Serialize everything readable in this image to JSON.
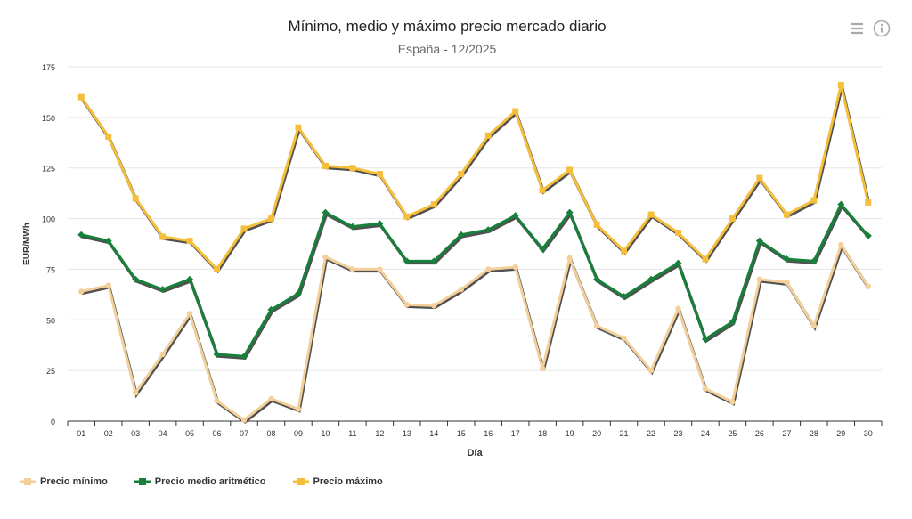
{
  "chart_data": {
    "type": "line",
    "title": "Mínimo, medio y máximo precio mercado diario",
    "subtitle": "España - 12/2025",
    "xlabel": "Día",
    "ylabel": "EUR/MWh",
    "ylim": [
      0,
      175
    ],
    "yticks": [
      0,
      25,
      50,
      75,
      100,
      125,
      150,
      175
    ],
    "grid": true,
    "legend_position": "bottom-left",
    "categories": [
      "01",
      "02",
      "03",
      "04",
      "05",
      "06",
      "07",
      "08",
      "09",
      "10",
      "11",
      "12",
      "13",
      "14",
      "15",
      "16",
      "17",
      "18",
      "19",
      "20",
      "21",
      "22",
      "23",
      "24",
      "25",
      "26",
      "27",
      "28",
      "29",
      "30"
    ],
    "series": [
      {
        "name": "Precio mínimo",
        "color": "#f3cf9a",
        "values": [
          64,
          67,
          14,
          33,
          53,
          10,
          0.5,
          11,
          6,
          81,
          75,
          75,
          57.5,
          57,
          65,
          75,
          76,
          26,
          80.5,
          47,
          41,
          25,
          55.5,
          16,
          9.5,
          70,
          68.5,
          47,
          87,
          66.5
        ]
      },
      {
        "name": "Precio medio aritmético",
        "color": "#17803a",
        "values": [
          92,
          89,
          70,
          65,
          70,
          33,
          32,
          55,
          63,
          103,
          96,
          97.5,
          79,
          79,
          92,
          94.5,
          101.5,
          85,
          103,
          70,
          61.5,
          70,
          78,
          40.5,
          49,
          89,
          80,
          79,
          107,
          91.5
        ]
      },
      {
        "name": "Precio máximo",
        "color": "#f5bf3c",
        "values": [
          160,
          140.5,
          110,
          91,
          89,
          75,
          95,
          100,
          145,
          126,
          125,
          122,
          101,
          107,
          122,
          141,
          153,
          114,
          124,
          97,
          84,
          102,
          93,
          80,
          100,
          120,
          102,
          109,
          166,
          108
        ]
      }
    ]
  },
  "icons": {
    "menu": "hamburger-menu-icon",
    "info": "info-icon"
  }
}
